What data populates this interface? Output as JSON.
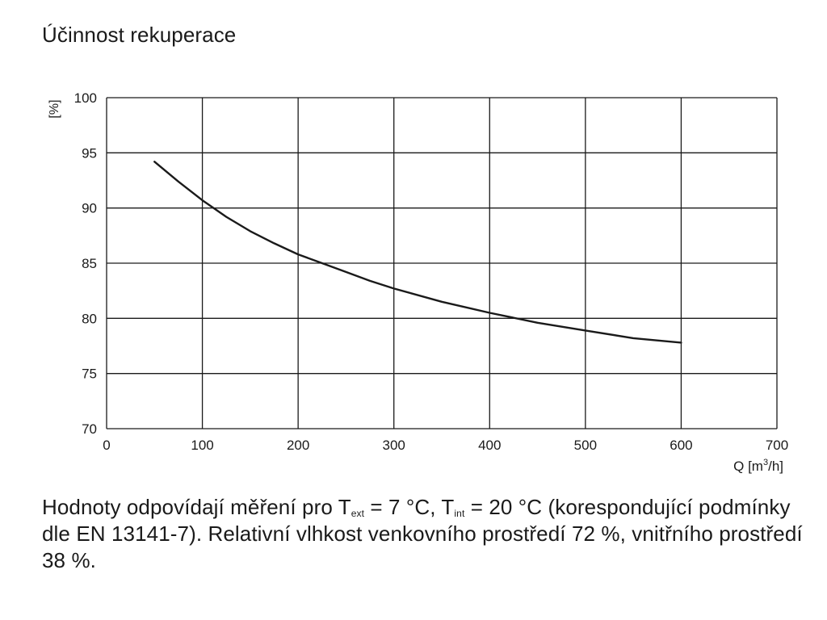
{
  "title": "Účinnost rekuperace",
  "chart_data": {
    "type": "line",
    "title": "Účinnost rekuperace",
    "xlabel_prefix": "Q [m",
    "xlabel_sup": "3",
    "xlabel_suffix": "/h]",
    "ylabel": "[%]",
    "xlim": [
      0,
      700
    ],
    "ylim": [
      70,
      100
    ],
    "xticks": [
      0,
      100,
      200,
      300,
      400,
      500,
      600,
      700
    ],
    "yticks": [
      70,
      75,
      80,
      85,
      90,
      95,
      100
    ],
    "grid": true,
    "line_color": "#1a1a1a",
    "series": [
      {
        "x": [
          50,
          75,
          100,
          125,
          150,
          175,
          200,
          225,
          250,
          275,
          300,
          350,
          400,
          450,
          500,
          550,
          600
        ],
        "values": [
          94.2,
          92.4,
          90.7,
          89.2,
          87.9,
          86.8,
          85.8,
          85.0,
          84.2,
          83.4,
          82.7,
          81.5,
          80.5,
          79.6,
          78.9,
          78.2,
          77.8
        ]
      }
    ]
  },
  "note": {
    "part1": "Hodnoty odpovídají měření pro T",
    "sub1": "ext",
    "part2": " = 7 °C, T",
    "sub2": "int",
    "part3": " = 20 °C (korespondující podmínky dle EN 13141-7). Relativní vlhkost venkovního prostředí 72 %, vnitřního prostředí 38 %."
  }
}
